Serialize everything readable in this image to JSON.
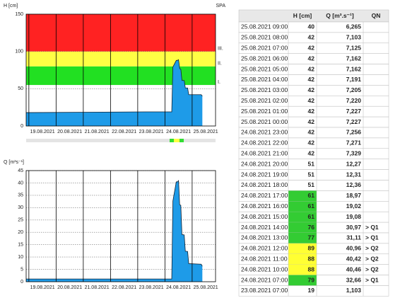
{
  "chart_data": [
    {
      "type": "area",
      "ylabel": "H [cm]",
      "corner_label": "SPA",
      "color": "#1e9be8",
      "ylim": [
        0,
        150
      ],
      "yticks": [
        0,
        50,
        100,
        150
      ],
      "grid": true,
      "xlim": [
        -0.1,
        6.86
      ],
      "xticks": [
        {
          "value": 0,
          "label": "19.08.2021"
        },
        {
          "value": 1,
          "label": "20.08.2021"
        },
        {
          "value": 2,
          "label": "21.08.2021"
        },
        {
          "value": 3,
          "label": "22.08.2021"
        },
        {
          "value": 4,
          "label": "23.08.2021"
        },
        {
          "value": 5,
          "label": "24.08.2021"
        },
        {
          "value": 6,
          "label": "25.08.2021"
        }
      ],
      "levels": [
        {
          "label": "I.",
          "value": 55,
          "color": "#22e022"
        },
        {
          "label": "II.",
          "value": 80,
          "color": "#ffff44"
        },
        {
          "label": "III.",
          "value": 100,
          "color": "#ff2222"
        }
      ],
      "series": [
        {
          "x": [
            -0.1,
            4.2917,
            5.25,
            5.2917,
            5.4167,
            5.4583,
            5.5,
            5.5417,
            5.5833,
            5.625,
            5.7083,
            5.75,
            5.8333,
            5.875,
            6.3333,
            6.375
          ],
          "values": [
            18,
            19,
            19,
            79,
            88,
            88,
            89,
            77,
            76,
            61,
            61,
            51,
            51,
            42,
            42,
            40
          ]
        }
      ]
    },
    {
      "type": "area",
      "ylabel": "Q [m³s⁻¹]",
      "color": "#1e9be8",
      "ylim": [
        0,
        45
      ],
      "yticks": [
        0,
        5,
        10,
        15,
        20,
        25,
        30,
        35,
        40,
        45
      ],
      "grid": true,
      "xlim": [
        -0.1,
        6.86
      ],
      "xticks": [
        {
          "value": 0,
          "label": "19.08.2021"
        },
        {
          "value": 1,
          "label": "20.08.2021"
        },
        {
          "value": 2,
          "label": "21.08.2021"
        },
        {
          "value": 3,
          "label": "22.08.2021"
        },
        {
          "value": 4,
          "label": "23.08.2021"
        },
        {
          "value": 5,
          "label": "24.08.2021"
        },
        {
          "value": 6,
          "label": "25.08.2021"
        }
      ],
      "series": [
        {
          "x": [
            -0.1,
            4.2917,
            5.25,
            5.2917,
            5.4167,
            5.4583,
            5.5,
            5.5417,
            5.5833,
            5.625,
            5.7083,
            5.75,
            5.8333,
            5.875,
            6.3333,
            6.375
          ],
          "values": [
            1.1,
            1.103,
            1.103,
            32.66,
            40.46,
            40.42,
            40.96,
            31.11,
            30.97,
            19.08,
            18.97,
            12.36,
            12.27,
            7.329,
            7.103,
            6.265
          ]
        }
      ]
    }
  ],
  "table": {
    "headers": [
      "H [cm]",
      "Q [m³.s⁻¹]",
      "QN"
    ],
    "rows": [
      {
        "time": "25.08.2021 09:00",
        "h": 40,
        "q": "6,265"
      },
      {
        "time": "25.08.2021 08:00",
        "h": 42,
        "q": "7,103"
      },
      {
        "time": "25.08.2021 07:00",
        "h": 42,
        "q": "7,125"
      },
      {
        "time": "25.08.2021 06:00",
        "h": 42,
        "q": "7,162"
      },
      {
        "time": "25.08.2021 05:00",
        "h": 42,
        "q": "7,162"
      },
      {
        "time": "25.08.2021 04:00",
        "h": 42,
        "q": "7,191"
      },
      {
        "time": "25.08.2021 03:00",
        "h": 42,
        "q": "7,205"
      },
      {
        "time": "25.08.2021 02:00",
        "h": 42,
        "q": "7,220"
      },
      {
        "time": "25.08.2021 01:00",
        "h": 42,
        "q": "7,227"
      },
      {
        "time": "25.08.2021 00:00",
        "h": 42,
        "q": "7,227"
      },
      {
        "time": "24.08.2021 23:00",
        "h": 42,
        "q": "7,256"
      },
      {
        "time": "24.08.2021 22:00",
        "h": 42,
        "q": "7,271"
      },
      {
        "time": "24.08.2021 21:00",
        "h": 42,
        "q": "7,329"
      },
      {
        "time": "24.08.2021 20:00",
        "h": 51,
        "q": "12,27"
      },
      {
        "time": "24.08.2021 19:00",
        "h": 51,
        "q": "12,31"
      },
      {
        "time": "24.08.2021 18:00",
        "h": 51,
        "q": "12,36"
      },
      {
        "time": "24.08.2021 17:00",
        "h": 61,
        "q": "18,97",
        "color": "#33cc33"
      },
      {
        "time": "24.08.2021 16:00",
        "h": 61,
        "q": "19,02",
        "color": "#33cc33"
      },
      {
        "time": "24.08.2021 15:00",
        "h": 61,
        "q": "19,08",
        "color": "#33cc33"
      },
      {
        "time": "24.08.2021 14:00",
        "h": 76,
        "q": "30,97",
        "qn": "> Q1",
        "color": "#33cc33"
      },
      {
        "time": "24.08.2021 13:00",
        "h": 77,
        "q": "31,11",
        "qn": "> Q1",
        "color": "#33cc33"
      },
      {
        "time": "24.08.2021 12:00",
        "h": 89,
        "q": "40,96",
        "qn": "> Q2",
        "color": "#ffff33"
      },
      {
        "time": "24.08.2021 11:00",
        "h": 88,
        "q": "40,42",
        "qn": "> Q2",
        "color": "#ffff33"
      },
      {
        "time": "24.08.2021 10:00",
        "h": 88,
        "q": "40,46",
        "qn": "> Q2",
        "color": "#ffff33"
      },
      {
        "time": "24.08.2021 07:00",
        "h": 79,
        "q": "32,66",
        "qn": "> Q1",
        "color": "#33cc33"
      },
      {
        "time": "23.08.2021 07:00",
        "h": 19,
        "q": "1,103"
      }
    ]
  }
}
